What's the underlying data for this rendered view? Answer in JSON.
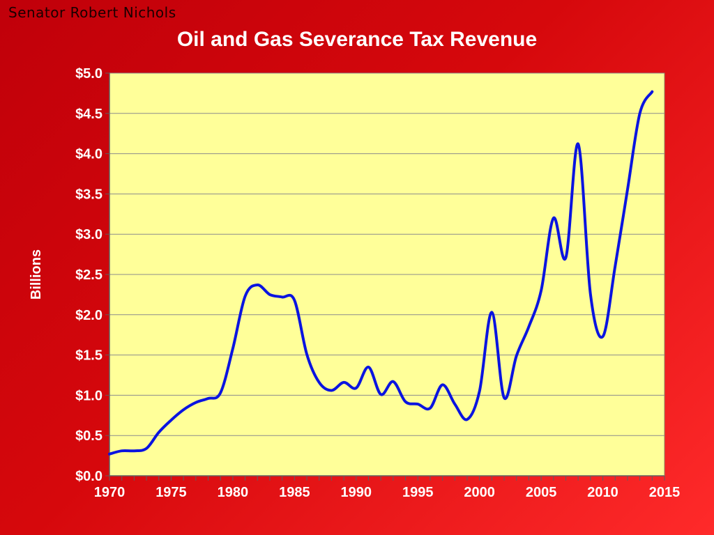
{
  "slide": {
    "presenter": "Senator Robert Nichols"
  },
  "colors": {
    "background": "#d10008",
    "plot_background": "#ffff99",
    "series_line": "#0a14e0",
    "text": "#ffffff"
  },
  "chart_data": {
    "type": "line",
    "title": "Oil and Gas Severance Tax Revenue",
    "xlabel": "",
    "ylabel": "Billions",
    "xlim": [
      1970,
      2015
    ],
    "ylim": [
      0,
      5
    ],
    "x_ticks": [
      1970,
      1975,
      1980,
      1985,
      1990,
      1995,
      2000,
      2005,
      2010,
      2015
    ],
    "x_tick_labels": [
      "1970",
      "1975",
      "1980",
      "1985",
      "1990",
      "1995",
      "2000",
      "2005",
      "2010",
      "2015"
    ],
    "y_ticks": [
      0,
      0.5,
      1,
      1.5,
      2,
      2.5,
      3,
      3.5,
      4,
      4.5,
      5
    ],
    "y_tick_labels": [
      "$0.0",
      "$0.5",
      "$1.0",
      "$1.5",
      "$2.0",
      "$2.5",
      "$3.0",
      "$3.5",
      "$4.0",
      "$4.5",
      "$5.0"
    ],
    "grid": "horizontal",
    "legend": "none",
    "series": [
      {
        "x": [
          1970,
          1971,
          1972,
          1973,
          1974,
          1975,
          1976,
          1977,
          1978,
          1979,
          1980,
          1981,
          1982,
          1983,
          1984,
          1985,
          1986,
          1987,
          1988,
          1989,
          1990,
          1991,
          1992,
          1993,
          1994,
          1995,
          1996,
          1997,
          1998,
          1999,
          2000,
          2001,
          2002,
          2003,
          2004,
          2005,
          2006,
          2007,
          2008,
          2009,
          2010,
          2011,
          2012,
          2013,
          2014
        ],
        "values": [
          0.27,
          0.31,
          0.31,
          0.34,
          0.54,
          0.69,
          0.82,
          0.91,
          0.96,
          1.03,
          1.58,
          2.23,
          2.37,
          2.25,
          2.22,
          2.18,
          1.51,
          1.16,
          1.06,
          1.16,
          1.09,
          1.35,
          1.01,
          1.17,
          0.92,
          0.89,
          0.84,
          1.13,
          0.89,
          0.7,
          1.05,
          2.03,
          0.97,
          1.49,
          1.85,
          2.3,
          3.2,
          2.71,
          4.12,
          2.25,
          1.73,
          2.6,
          3.55,
          4.5,
          4.77
        ]
      }
    ]
  }
}
